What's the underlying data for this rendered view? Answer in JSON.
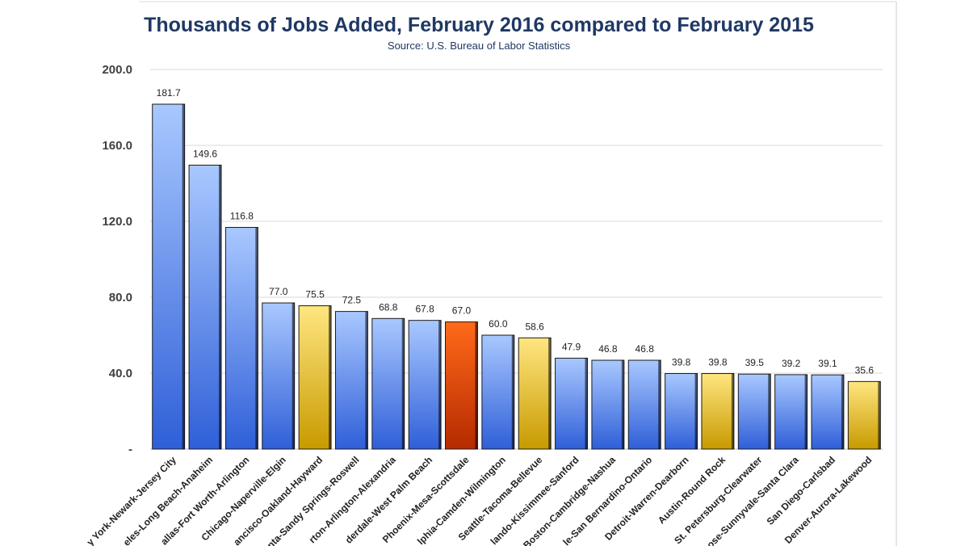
{
  "chart_data": {
    "type": "bar",
    "title": "Thousands of Jobs Added, February 2016 compared to February 2015",
    "subtitle": "Source: U.S. Bureau of Labor Statistics",
    "ylim": [
      0,
      200
    ],
    "yticks": [
      0,
      40,
      80,
      120,
      160,
      200
    ],
    "ytick_labels": [
      "-",
      "40.0",
      "80.0",
      "120.0",
      "160.0",
      "200.0"
    ],
    "grid": true,
    "categories": [
      "y York-Newark-Jersey City",
      "eles-Long Beach-Anaheim",
      "allas-Fort Worth-Arlington",
      "Chicago-Naperville-Elgin",
      "ancisco-Oakland-Hayward",
      "nta-Sandy Springs-Roswell",
      "rton-Arlington-Alexandria",
      "derdale-West Palm Beach",
      "Phoenix-Mesa-Scottsdale",
      "lphia-Camden-Wilmington",
      "Seattle-Tacoma-Bellevue",
      "lando-Kissimmee-Sanford",
      "Boston-Cambridge-Nashua",
      "le-San Bernardino-Ontario",
      "Detroit-Warren-Dearborn",
      "Austin-Round Rock",
      "St. Petersburg-Clearwater",
      "ose-Sunnyvale-Santa Clara",
      "San Diego-Carlsbad",
      "Denver-Aurora-Lakewood"
    ],
    "values": [
      181.7,
      149.6,
      116.8,
      77.0,
      75.5,
      72.5,
      68.8,
      67.8,
      67.0,
      60.0,
      58.6,
      47.9,
      46.8,
      46.8,
      39.8,
      39.8,
      39.5,
      39.2,
      39.1,
      35.6
    ],
    "value_labels": [
      "181.7",
      "149.6",
      "116.8",
      "77.0",
      "75.5",
      "72.5",
      "68.8",
      "67.8",
      "67.0",
      "60.0",
      "58.6",
      "47.9",
      "46.8",
      "46.8",
      "39.8",
      "39.8",
      "39.5",
      "39.2",
      "39.1",
      "35.6"
    ],
    "bar_colors": [
      "blue",
      "blue",
      "blue",
      "blue",
      "yellow",
      "blue",
      "blue",
      "blue",
      "orange",
      "blue",
      "yellow",
      "blue",
      "blue",
      "blue",
      "blue",
      "yellow",
      "blue",
      "blue",
      "blue",
      "yellow"
    ],
    "palette": {
      "blue": [
        "#a9c8ff",
        "#2f5fd8"
      ],
      "yellow": [
        "#ffe680",
        "#c89a00"
      ],
      "orange": [
        "#ff6a1a",
        "#b52a00"
      ]
    }
  }
}
